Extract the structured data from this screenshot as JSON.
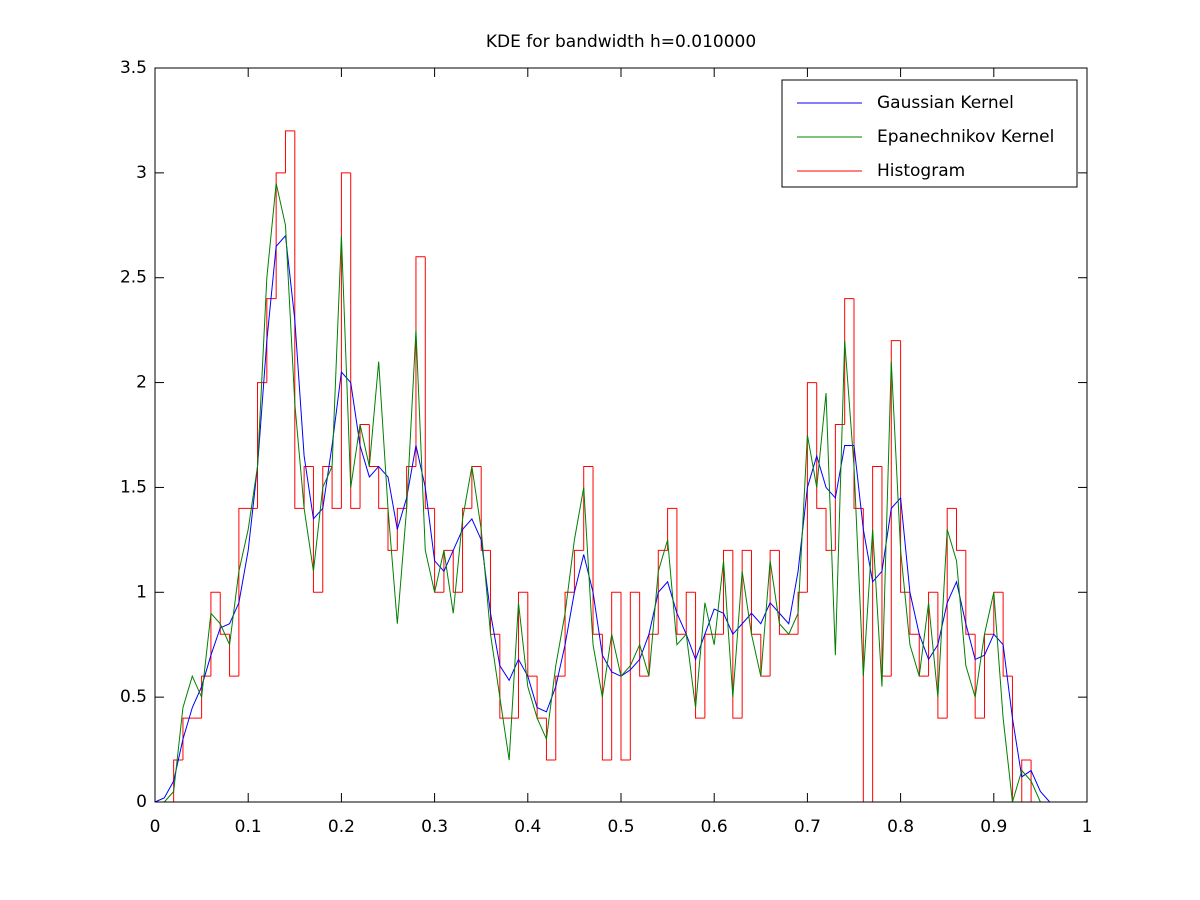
{
  "chart_data": {
    "type": "line",
    "title": "KDE for bandwidth h=0.010000",
    "x": [
      0,
      0.01,
      0.02,
      0.03,
      0.04,
      0.05,
      0.06,
      0.07,
      0.08,
      0.09,
      0.1,
      0.11,
      0.12,
      0.13,
      0.14,
      0.15,
      0.16,
      0.17,
      0.18,
      0.19,
      0.2,
      0.21,
      0.22,
      0.23,
      0.24,
      0.25,
      0.26,
      0.27,
      0.28,
      0.29,
      0.3,
      0.31,
      0.32,
      0.33,
      0.34,
      0.35,
      0.36,
      0.37,
      0.38,
      0.39,
      0.4,
      0.41,
      0.42,
      0.43,
      0.44,
      0.45,
      0.46,
      0.47,
      0.48,
      0.49,
      0.5,
      0.51,
      0.52,
      0.53,
      0.54,
      0.55,
      0.56,
      0.57,
      0.58,
      0.59,
      0.6,
      0.61,
      0.62,
      0.63,
      0.64,
      0.65,
      0.66,
      0.67,
      0.68,
      0.69,
      0.7,
      0.71,
      0.72,
      0.73,
      0.74,
      0.75,
      0.76,
      0.77,
      0.78,
      0.79,
      0.8,
      0.81,
      0.82,
      0.83,
      0.84,
      0.85,
      0.86,
      0.87,
      0.88,
      0.89,
      0.9,
      0.91,
      0.92,
      0.93,
      0.94,
      0.95,
      0.96,
      0.97,
      0.98,
      0.99,
      1
    ],
    "series": [
      {
        "name": "Gaussian Kernel",
        "color": "#0000ff",
        "values": [
          0,
          0.02,
          0.1,
          0.3,
          0.45,
          0.55,
          0.7,
          0.83,
          0.85,
          0.95,
          1.2,
          1.6,
          2.2,
          2.65,
          2.7,
          2.3,
          1.65,
          1.35,
          1.4,
          1.7,
          2.05,
          2.0,
          1.7,
          1.55,
          1.6,
          1.55,
          1.3,
          1.45,
          1.7,
          1.5,
          1.15,
          1.1,
          1.2,
          1.3,
          1.35,
          1.25,
          0.9,
          0.65,
          0.58,
          0.68,
          0.6,
          0.45,
          0.43,
          0.55,
          0.75,
          1.0,
          1.18,
          1.0,
          0.7,
          0.62,
          0.6,
          0.63,
          0.68,
          0.8,
          1.0,
          1.05,
          0.9,
          0.8,
          0.68,
          0.8,
          0.92,
          0.9,
          0.8,
          0.85,
          0.9,
          0.85,
          0.95,
          0.9,
          0.85,
          1.1,
          1.5,
          1.65,
          1.5,
          1.45,
          1.7,
          1.7,
          1.3,
          1.05,
          1.1,
          1.4,
          1.45,
          1.0,
          0.8,
          0.68,
          0.75,
          0.95,
          1.05,
          0.85,
          0.68,
          0.7,
          0.8,
          0.75,
          0.4,
          0.12,
          0.15,
          0.05,
          0,
          0,
          0,
          0,
          0
        ]
      },
      {
        "name": "Epanechnikov Kernel",
        "color": "#008000",
        "values": [
          0,
          0,
          0.05,
          0.45,
          0.6,
          0.5,
          0.9,
          0.85,
          0.75,
          1.1,
          1.3,
          1.6,
          2.5,
          2.95,
          2.75,
          1.9,
          1.4,
          1.1,
          1.5,
          1.6,
          2.7,
          1.5,
          1.8,
          1.6,
          2.1,
          1.4,
          0.85,
          1.4,
          2.25,
          1.2,
          1.0,
          1.2,
          0.9,
          1.35,
          1.6,
          1.3,
          0.8,
          0.5,
          0.2,
          0.95,
          0.55,
          0.4,
          0.3,
          0.65,
          0.9,
          1.25,
          1.5,
          0.75,
          0.5,
          0.8,
          0.6,
          0.65,
          0.75,
          0.6,
          1.1,
          1.25,
          0.75,
          0.8,
          0.45,
          0.95,
          0.75,
          1.15,
          0.5,
          1.1,
          0.8,
          0.6,
          1.15,
          0.85,
          0.8,
          0.9,
          1.75,
          1.5,
          1.95,
          0.7,
          2.2,
          1.6,
          0.6,
          1.3,
          0.55,
          2.1,
          1.2,
          0.75,
          0.6,
          0.95,
          0.5,
          1.3,
          1.15,
          0.65,
          0.5,
          0.8,
          1.0,
          0.4,
          0,
          0.15,
          0.1,
          0,
          0,
          0,
          0,
          0,
          0
        ]
      }
    ],
    "histogram": {
      "type": "histogram",
      "name": "Histogram",
      "color": "#ff0000",
      "bins": [
        0,
        0.01,
        0.02,
        0.03,
        0.04,
        0.05,
        0.06,
        0.07,
        0.08,
        0.09,
        0.1,
        0.11,
        0.12,
        0.13,
        0.14,
        0.15,
        0.16,
        0.17,
        0.18,
        0.19,
        0.2,
        0.21,
        0.22,
        0.23,
        0.24,
        0.25,
        0.26,
        0.27,
        0.28,
        0.29,
        0.3,
        0.31,
        0.32,
        0.33,
        0.34,
        0.35,
        0.36,
        0.37,
        0.38,
        0.39,
        0.4,
        0.41,
        0.42,
        0.43,
        0.44,
        0.45,
        0.46,
        0.47,
        0.48,
        0.49,
        0.5,
        0.51,
        0.52,
        0.53,
        0.54,
        0.55,
        0.56,
        0.57,
        0.58,
        0.59,
        0.6,
        0.61,
        0.62,
        0.63,
        0.64,
        0.65,
        0.66,
        0.67,
        0.68,
        0.69,
        0.7,
        0.71,
        0.72,
        0.73,
        0.74,
        0.75,
        0.76,
        0.77,
        0.78,
        0.79,
        0.8,
        0.81,
        0.82,
        0.83,
        0.84,
        0.85,
        0.86,
        0.87,
        0.88,
        0.89,
        0.9,
        0.91,
        0.92,
        0.93,
        0.94,
        0.95,
        0.96,
        0.97,
        0.98,
        0.99,
        1
      ],
      "counts": [
        0,
        0,
        0.2,
        0.4,
        0.4,
        0.6,
        1.0,
        0.8,
        0.6,
        1.4,
        1.4,
        2.0,
        2.4,
        3.0,
        3.2,
        1.4,
        1.6,
        1.0,
        1.6,
        1.4,
        3.0,
        1.4,
        1.8,
        1.6,
        1.4,
        1.2,
        1.4,
        1.6,
        2.6,
        1.4,
        1.0,
        1.2,
        1.0,
        1.4,
        1.6,
        1.2,
        0.8,
        0.4,
        0.4,
        1.0,
        0.6,
        0.4,
        0.2,
        0.6,
        1.0,
        1.2,
        1.6,
        0.8,
        0.2,
        1.0,
        0.2,
        1.0,
        0.6,
        0.8,
        1.2,
        1.4,
        0.8,
        1.0,
        0.4,
        0.8,
        0.8,
        1.2,
        0.4,
        1.2,
        0.8,
        0.6,
        1.2,
        0.8,
        0.8,
        1.0,
        2.0,
        1.4,
        1.2,
        1.8,
        2.4,
        1.4,
        0,
        1.6,
        0.6,
        2.2,
        1.0,
        0.8,
        0.6,
        1.0,
        0.4,
        1.4,
        1.2,
        0.8,
        0.4,
        0.8,
        1.0,
        0.6,
        0,
        0.2,
        0,
        0,
        0,
        0,
        0,
        0
      ]
    },
    "xlim": [
      0,
      1
    ],
    "ylim": [
      0,
      3.5
    ],
    "xticks": [
      0,
      0.1,
      0.2,
      0.3,
      0.4,
      0.5,
      0.6,
      0.7,
      0.8,
      0.9,
      1
    ],
    "yticks": [
      0,
      0.5,
      1,
      1.5,
      2,
      2.5,
      3,
      3.5
    ],
    "legend": "top-right"
  }
}
